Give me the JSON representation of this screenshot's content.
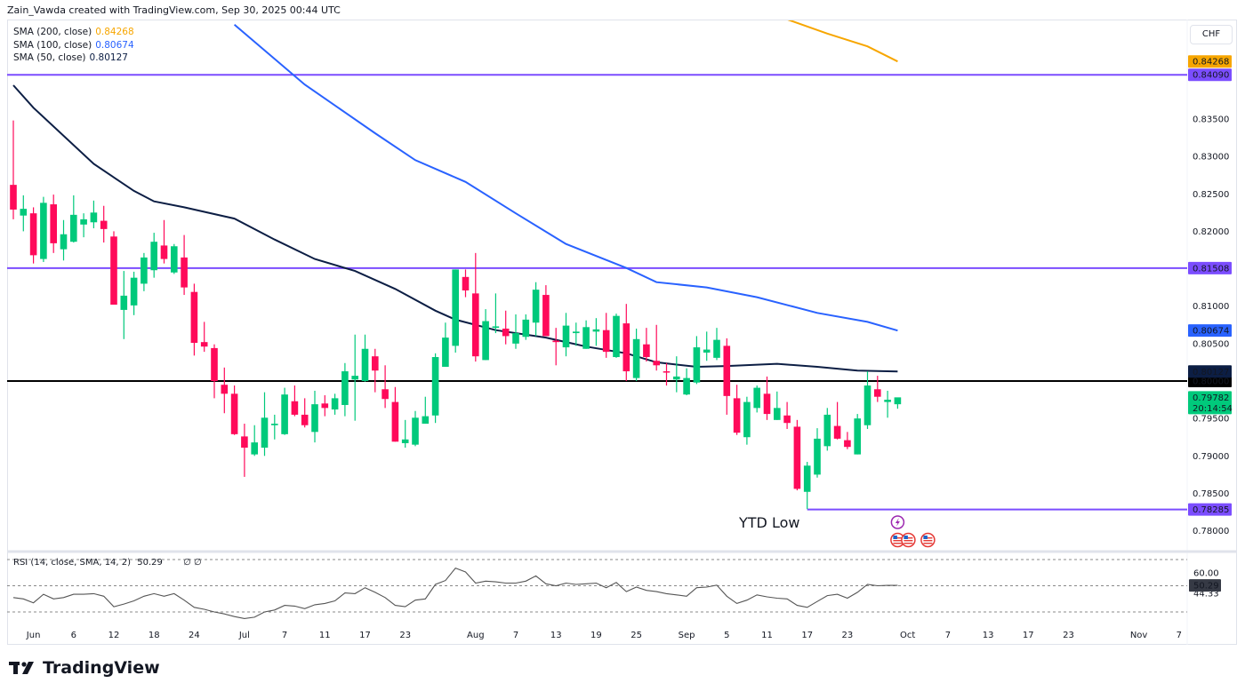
{
  "header": {
    "attribution": "Zain_Vawda created with TradingView.com, Sep 30, 2025 00:44 UTC"
  },
  "legend": [
    {
      "label": "SMA (200, close)",
      "value": "0.84268",
      "color": "#f7a600"
    },
    {
      "label": "SMA (100, close)",
      "value": "0.80674",
      "color": "#2962ff"
    },
    {
      "label": "SMA (50, close)",
      "value": "0.80127",
      "color": "#0c1e44"
    }
  ],
  "currency": "CHF",
  "annotation": "YTD Low",
  "brand": "TradingView",
  "colors": {
    "up": "#00c97b",
    "down": "#ff0a5a",
    "level": "#7b4dff",
    "round": "#000000",
    "sma200": "#f7a600",
    "sma100": "#2962ff",
    "sma50": "#0c1e44",
    "rsi": "#555555"
  },
  "icons": [
    "lightning-event-icon",
    "us-flag-event-icon",
    "us-flag-event-icon",
    "us-flag-event-icon"
  ],
  "chart_data": {
    "type": "candlestick",
    "price_ticks": [
      "0.83500",
      "0.83000",
      "0.82500",
      "0.82000",
      "0.81000",
      "0.80500",
      "0.79500",
      "0.79000",
      "0.78500",
      "0.78000"
    ],
    "price_ylim": [
      0.7765,
      0.8475
    ],
    "x_ticks": [
      {
        "label": "Jun",
        "date": "2025-06-02"
      },
      {
        "label": "6",
        "date": "2025-06-06"
      },
      {
        "label": "12",
        "date": "2025-06-12"
      },
      {
        "label": "18",
        "date": "2025-06-18"
      },
      {
        "label": "24",
        "date": "2025-06-24"
      },
      {
        "label": "Jul",
        "date": "2025-07-01"
      },
      {
        "label": "7",
        "date": "2025-07-07"
      },
      {
        "label": "11",
        "date": "2025-07-11"
      },
      {
        "label": "17",
        "date": "2025-07-17"
      },
      {
        "label": "23",
        "date": "2025-07-23"
      },
      {
        "label": "Aug",
        "date": "2025-08-01"
      },
      {
        "label": "7",
        "date": "2025-08-07"
      },
      {
        "label": "13",
        "date": "2025-08-13"
      },
      {
        "label": "19",
        "date": "2025-08-19"
      },
      {
        "label": "25",
        "date": "2025-08-25"
      },
      {
        "label": "Sep",
        "date": "2025-09-01"
      },
      {
        "label": "5",
        "date": "2025-09-05"
      },
      {
        "label": "11",
        "date": "2025-09-11"
      },
      {
        "label": "17",
        "date": "2025-09-17"
      },
      {
        "label": "23",
        "date": "2025-09-23"
      },
      {
        "label": "Oct",
        "date": "2025-10-01"
      },
      {
        "label": "7",
        "date": "2025-10-07"
      },
      {
        "label": "13",
        "date": "2025-10-13"
      },
      {
        "label": "17",
        "date": "2025-10-17"
      },
      {
        "label": "23",
        "date": "2025-10-23"
      },
      {
        "label": "Nov",
        "date": "2025-11-03"
      },
      {
        "label": "7",
        "date": "2025-11-07"
      }
    ],
    "candles_ohlc": [
      [
        "2025-05-29",
        0.8262,
        0.8348,
        0.8216,
        0.8229
      ],
      [
        "2025-05-30",
        0.8221,
        0.8248,
        0.82,
        0.823
      ],
      [
        "2025-06-02",
        0.8224,
        0.8232,
        0.8157,
        0.8168
      ],
      [
        "2025-06-03",
        0.8163,
        0.8246,
        0.8159,
        0.8238
      ],
      [
        "2025-06-04",
        0.8236,
        0.8249,
        0.8171,
        0.8184
      ],
      [
        "2025-06-05",
        0.8176,
        0.8215,
        0.8161,
        0.8196
      ],
      [
        "2025-06-06",
        0.8186,
        0.8248,
        0.8185,
        0.8222
      ],
      [
        "2025-06-09",
        0.8209,
        0.8224,
        0.8192,
        0.8216
      ],
      [
        "2025-06-10",
        0.8212,
        0.8241,
        0.8204,
        0.8225
      ],
      [
        "2025-06-11",
        0.8214,
        0.8234,
        0.8185,
        0.8203
      ],
      [
        "2025-06-12",
        0.8193,
        0.82,
        0.8102,
        0.8102
      ],
      [
        "2025-06-13",
        0.8095,
        0.8147,
        0.8056,
        0.8114
      ],
      [
        "2025-06-16",
        0.8101,
        0.8146,
        0.8088,
        0.8138
      ],
      [
        "2025-06-17",
        0.813,
        0.8171,
        0.812,
        0.8165
      ],
      [
        "2025-06-18",
        0.8148,
        0.8198,
        0.8138,
        0.8186
      ],
      [
        "2025-06-19",
        0.8181,
        0.8215,
        0.8157,
        0.8163
      ],
      [
        "2025-06-20",
        0.8145,
        0.8183,
        0.8143,
        0.818
      ],
      [
        "2025-06-23",
        0.8165,
        0.8195,
        0.8115,
        0.8125
      ],
      [
        "2025-06-24",
        0.8119,
        0.813,
        0.8034,
        0.8051
      ],
      [
        "2025-06-25",
        0.8052,
        0.8079,
        0.8039,
        0.8046
      ],
      [
        "2025-06-26",
        0.8044,
        0.8049,
        0.7977,
        0.8
      ],
      [
        "2025-06-27",
        0.7995,
        0.8018,
        0.7957,
        0.7983
      ],
      [
        "2025-06-30",
        0.7983,
        0.7994,
        0.7928,
        0.7929
      ],
      [
        "2025-07-01",
        0.7926,
        0.7943,
        0.7872,
        0.7911
      ],
      [
        "2025-07-02",
        0.7902,
        0.7941,
        0.79,
        0.7918
      ],
      [
        "2025-07-03",
        0.7911,
        0.7985,
        0.79,
        0.7951
      ],
      [
        "2025-07-04",
        0.7941,
        0.7955,
        0.7922,
        0.7943
      ],
      [
        "2025-07-07",
        0.7929,
        0.7991,
        0.7928,
        0.7982
      ],
      [
        "2025-07-08",
        0.7973,
        0.7994,
        0.7953,
        0.7955
      ],
      [
        "2025-07-09",
        0.7955,
        0.7977,
        0.7938,
        0.7941
      ],
      [
        "2025-07-10",
        0.7932,
        0.7987,
        0.7918,
        0.7969
      ],
      [
        "2025-07-11",
        0.797,
        0.7981,
        0.7953,
        0.7964
      ],
      [
        "2025-07-14",
        0.7962,
        0.7983,
        0.7955,
        0.7977
      ],
      [
        "2025-07-15",
        0.7968,
        0.8024,
        0.7953,
        0.8013
      ],
      [
        "2025-07-16",
        0.8002,
        0.8062,
        0.7947,
        0.8007
      ],
      [
        "2025-07-17",
        0.8,
        0.8062,
        0.7999,
        0.8043
      ],
      [
        "2025-07-18",
        0.8033,
        0.8043,
        0.7985,
        0.8014
      ],
      [
        "2025-07-21",
        0.7989,
        0.8021,
        0.7964,
        0.7976
      ],
      [
        "2025-07-22",
        0.7972,
        0.7992,
        0.7919,
        0.7919
      ],
      [
        "2025-07-23",
        0.7917,
        0.7948,
        0.7911,
        0.7922
      ],
      [
        "2025-07-24",
        0.7915,
        0.796,
        0.7913,
        0.7951
      ],
      [
        "2025-07-25",
        0.7943,
        0.7979,
        0.7943,
        0.7953
      ],
      [
        "2025-07-28",
        0.7954,
        0.8037,
        0.7944,
        0.8032
      ],
      [
        "2025-07-29",
        0.8019,
        0.8078,
        0.8019,
        0.8058
      ],
      [
        "2025-07-30",
        0.8047,
        0.8149,
        0.8038,
        0.8149
      ],
      [
        "2025-07-31",
        0.8139,
        0.8149,
        0.8112,
        0.8121
      ],
      [
        "2025-08-01",
        0.8117,
        0.8171,
        0.8026,
        0.8033
      ],
      [
        "2025-08-04",
        0.8028,
        0.8096,
        0.8028,
        0.808
      ],
      [
        "2025-08-05",
        0.8071,
        0.8117,
        0.8064,
        0.8073
      ],
      [
        "2025-08-06",
        0.807,
        0.8094,
        0.8049,
        0.806
      ],
      [
        "2025-08-07",
        0.805,
        0.8089,
        0.8043,
        0.8064
      ],
      [
        "2025-08-08",
        0.8059,
        0.8089,
        0.8055,
        0.8082
      ],
      [
        "2025-08-11",
        0.8078,
        0.8132,
        0.806,
        0.8122
      ],
      [
        "2025-08-12",
        0.8115,
        0.8128,
        0.806,
        0.806
      ],
      [
        "2025-08-13",
        0.8054,
        0.8071,
        0.8021,
        0.8052
      ],
      [
        "2025-08-14",
        0.8045,
        0.8091,
        0.8033,
        0.8074
      ],
      [
        "2025-08-15",
        0.8064,
        0.8078,
        0.8047,
        0.8066
      ],
      [
        "2025-08-18",
        0.8043,
        0.8081,
        0.8043,
        0.8072
      ],
      [
        "2025-08-19",
        0.8066,
        0.8084,
        0.8047,
        0.8069
      ],
      [
        "2025-08-20",
        0.8068,
        0.8091,
        0.8031,
        0.8039
      ],
      [
        "2025-08-21",
        0.8032,
        0.809,
        0.8031,
        0.8087
      ],
      [
        "2025-08-22",
        0.8077,
        0.8103,
        0.8,
        0.8013
      ],
      [
        "2025-08-25",
        0.8004,
        0.807,
        0.8,
        0.8056
      ],
      [
        "2025-08-26",
        0.8049,
        0.8071,
        0.8026,
        0.8032
      ],
      [
        "2025-08-27",
        0.8027,
        0.8075,
        0.8014,
        0.8021
      ],
      [
        "2025-08-28",
        0.8013,
        0.8024,
        0.7994,
        0.8012
      ],
      [
        "2025-08-29",
        0.8002,
        0.8033,
        0.7985,
        0.8006
      ],
      [
        "2025-09-01",
        0.7982,
        0.8017,
        0.7981,
        0.8004
      ],
      [
        "2025-09-02",
        0.7998,
        0.806,
        0.7996,
        0.8045
      ],
      [
        "2025-09-03",
        0.8038,
        0.8066,
        0.8027,
        0.8042
      ],
      [
        "2025-09-04",
        0.8031,
        0.8071,
        0.8028,
        0.8055
      ],
      [
        "2025-09-05",
        0.8047,
        0.8057,
        0.7955,
        0.798
      ],
      [
        "2025-09-08",
        0.7977,
        0.7995,
        0.7928,
        0.7931
      ],
      [
        "2025-09-09",
        0.7925,
        0.7979,
        0.7915,
        0.7972
      ],
      [
        "2025-09-10",
        0.7964,
        0.7994,
        0.7958,
        0.7991
      ],
      [
        "2025-09-11",
        0.7983,
        0.8006,
        0.7948,
        0.7956
      ],
      [
        "2025-09-12",
        0.7948,
        0.7986,
        0.7948,
        0.7964
      ],
      [
        "2025-09-15",
        0.7954,
        0.7972,
        0.7936,
        0.7944
      ],
      [
        "2025-09-16",
        0.7939,
        0.7948,
        0.7854,
        0.7856
      ],
      [
        "2025-09-17",
        0.7852,
        0.7892,
        0.7829,
        0.7887
      ],
      [
        "2025-09-18",
        0.7875,
        0.7937,
        0.7871,
        0.7923
      ],
      [
        "2025-09-19",
        0.7913,
        0.7964,
        0.7907,
        0.7955
      ],
      [
        "2025-09-22",
        0.794,
        0.7972,
        0.7922,
        0.7923
      ],
      [
        "2025-09-23",
        0.7921,
        0.7932,
        0.7909,
        0.7912
      ],
      [
        "2025-09-24",
        0.7902,
        0.7956,
        0.7902,
        0.795
      ],
      [
        "2025-09-25",
        0.7941,
        0.8013,
        0.7936,
        0.7994
      ],
      [
        "2025-09-26",
        0.7989,
        0.8007,
        0.7972,
        0.7979
      ],
      [
        "2025-09-29",
        0.7972,
        0.7987,
        0.7951,
        0.7975
      ],
      [
        "2025-09-30",
        0.7969,
        0.7977,
        0.7963,
        0.79782
      ]
    ],
    "sma": [
      {
        "name": "SMA (200, close)",
        "color": "#f7a600",
        "points": [
          [
            "2025-09-15",
            0.8483
          ],
          [
            "2025-09-19",
            0.8464
          ],
          [
            "2025-09-25",
            0.8447
          ],
          [
            "2025-09-30",
            0.84268
          ]
        ]
      },
      {
        "name": "SMA (100, close)",
        "color": "#2962ff",
        "points": [
          [
            "2025-06-30",
            0.8476
          ],
          [
            "2025-07-09",
            0.8396
          ],
          [
            "2025-07-18",
            0.8331
          ],
          [
            "2025-07-24",
            0.8295
          ],
          [
            "2025-07-31",
            0.8266
          ],
          [
            "2025-08-07",
            0.8224
          ],
          [
            "2025-08-14",
            0.8183
          ],
          [
            "2025-08-22",
            0.8151
          ],
          [
            "2025-08-27",
            0.8132
          ],
          [
            "2025-09-03",
            0.8125
          ],
          [
            "2025-09-10",
            0.8112
          ],
          [
            "2025-09-18",
            0.8091
          ],
          [
            "2025-09-25",
            0.8079
          ],
          [
            "2025-09-30",
            0.80674
          ]
        ]
      },
      {
        "name": "SMA (50, close)",
        "color": "#0c1e44",
        "points": [
          [
            "2025-05-29",
            0.8395
          ],
          [
            "2025-06-02",
            0.8365
          ],
          [
            "2025-06-10",
            0.829
          ],
          [
            "2025-06-16",
            0.8254
          ],
          [
            "2025-06-18",
            0.824
          ],
          [
            "2025-06-23",
            0.8232
          ],
          [
            "2025-06-30",
            0.8217
          ],
          [
            "2025-07-04",
            0.8189
          ],
          [
            "2025-07-10",
            0.8163
          ],
          [
            "2025-07-16",
            0.8147
          ],
          [
            "2025-07-22",
            0.8123
          ],
          [
            "2025-07-28",
            0.8094
          ],
          [
            "2025-07-30",
            0.8082
          ],
          [
            "2025-08-05",
            0.8068
          ],
          [
            "2025-08-12",
            0.8058
          ],
          [
            "2025-08-18",
            0.8046
          ],
          [
            "2025-08-22",
            0.8037
          ],
          [
            "2025-08-27",
            0.8025
          ],
          [
            "2025-09-02",
            0.8019
          ],
          [
            "2025-09-05",
            0.802
          ],
          [
            "2025-09-12",
            0.8023
          ],
          [
            "2025-09-18",
            0.8019
          ],
          [
            "2025-09-24",
            0.8014
          ],
          [
            "2025-09-30",
            0.80127
          ]
        ]
      }
    ],
    "horizontal_levels": [
      {
        "price": 0.8409,
        "label": "0.84090",
        "color": "#7b4dff",
        "from": "start"
      },
      {
        "price": 0.81508,
        "label": "0.81508",
        "color": "#7b4dff",
        "from": "start"
      },
      {
        "price": 0.8,
        "label": "0.80000",
        "color": "#000000",
        "from": "start"
      },
      {
        "price": 0.78285,
        "label": "0.78285",
        "color": "#7b4dff",
        "from": "2025-09-17"
      }
    ],
    "price_tags": [
      {
        "price": 0.84268,
        "label": "0.84268",
        "color": "#f7a600"
      },
      {
        "price": 0.80674,
        "label": "0.80674",
        "color": "#2962ff"
      },
      {
        "price": 0.80127,
        "label": "0.80127",
        "color": "#0c1e44"
      },
      {
        "price": 0.79782,
        "label": "0.79782",
        "sub": "20:14:54",
        "color": "#00c97b"
      }
    ],
    "rsi": {
      "legend": "RSI (14, close, SMA, 14, 2)",
      "value": "50.29",
      "extra": "∅ ∅",
      "levels": [
        70,
        50,
        30
      ],
      "axis_labels": [
        "60.00",
        "44.33"
      ],
      "axis_label_values": [
        60.0,
        44.33
      ],
      "values": [
        41,
        40,
        37,
        43.5,
        40,
        41,
        43.5,
        43.5,
        44,
        42,
        34,
        36,
        38.5,
        42,
        44,
        42,
        44,
        39,
        33.5,
        32,
        30,
        28.5,
        26.5,
        25,
        26,
        30,
        31.5,
        35,
        34.5,
        32.5,
        35.5,
        36.5,
        38.5,
        44.5,
        44,
        48.5,
        45,
        41,
        35,
        34,
        39,
        40,
        51,
        54,
        63.5,
        60.5,
        52,
        53.5,
        53,
        52,
        52,
        53.5,
        57.5,
        51.5,
        50,
        52,
        51,
        51.5,
        52,
        48.5,
        52.5,
        45.5,
        49,
        46.5,
        45.5,
        44,
        43,
        42,
        48.5,
        49,
        50.5,
        42,
        36.5,
        39,
        43,
        41.5,
        40.5,
        40,
        35,
        33.5,
        38,
        42.5,
        43.5,
        40.5,
        45,
        51,
        50,
        50.3,
        50.29
      ]
    }
  }
}
